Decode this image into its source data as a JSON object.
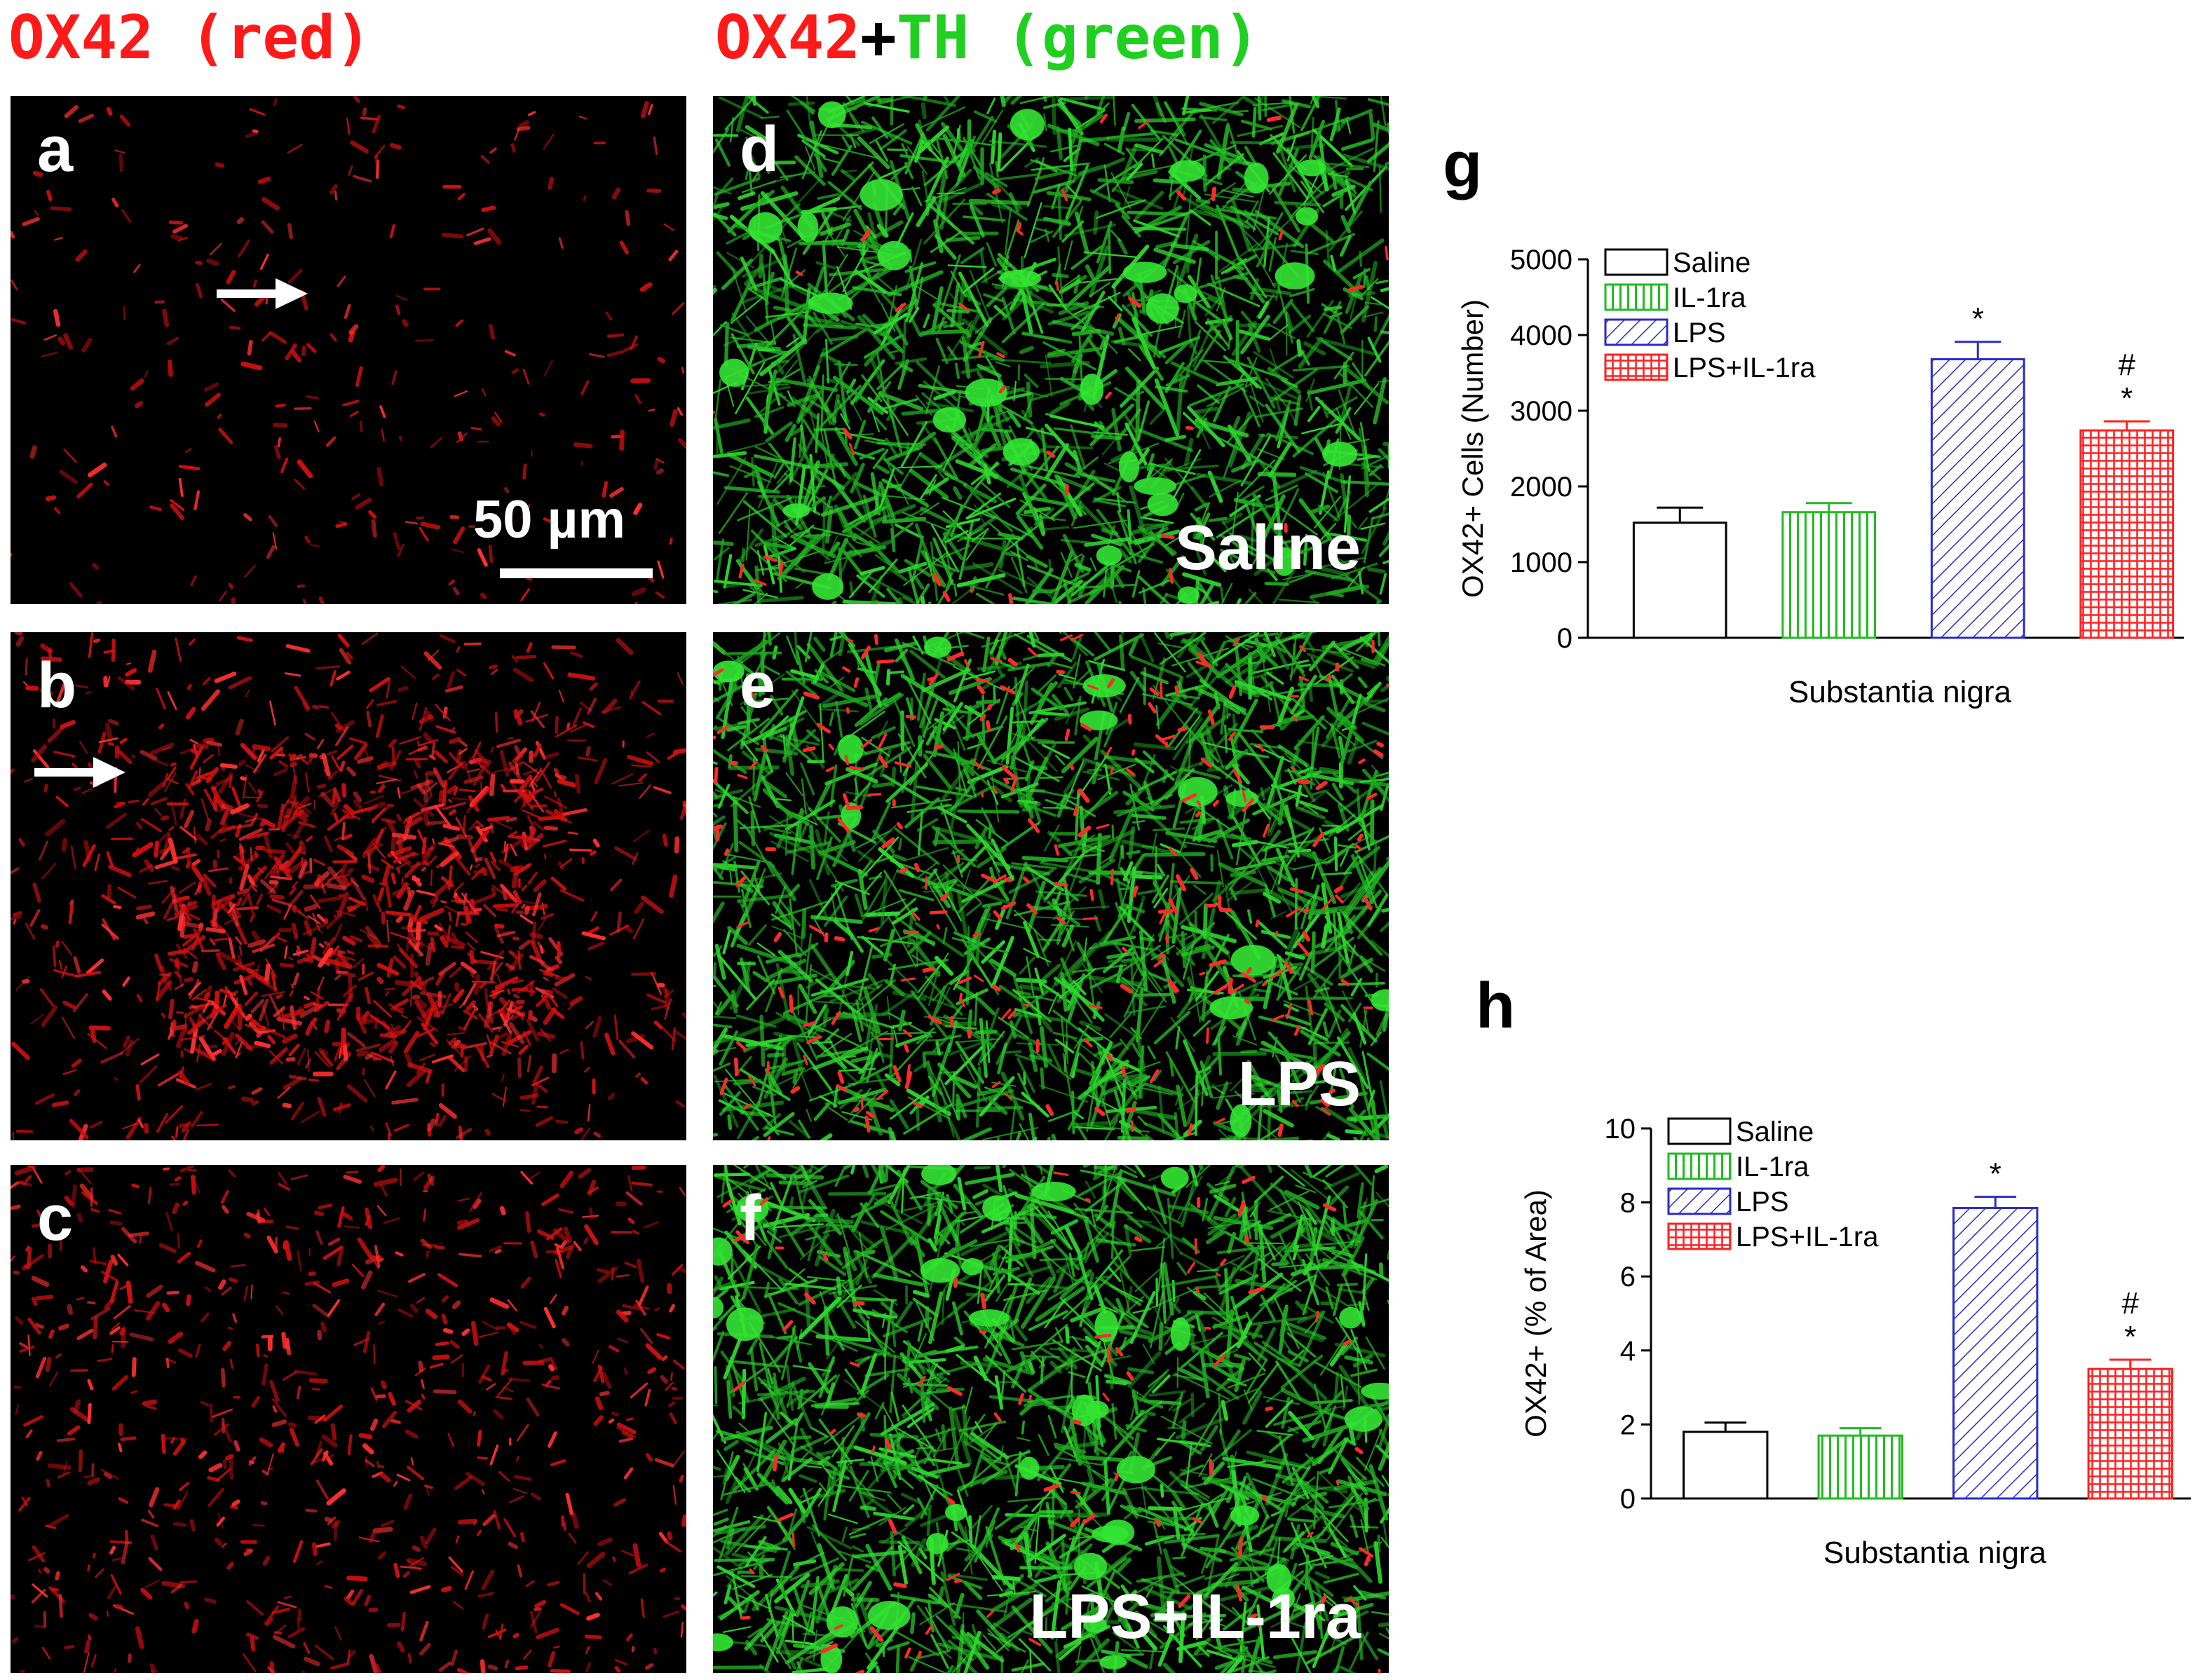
{
  "headers": {
    "left": {
      "text": "OX42 (red)",
      "color": "#ff1a1a"
    },
    "right": {
      "part1": "OX42",
      "part2": "+",
      "part3": "TH (green)",
      "color1": "#ff1a1a",
      "color2": "#000000",
      "color3": "#20d020"
    }
  },
  "panels": {
    "a": {
      "label": "a",
      "scale": "50 µm"
    },
    "b": {
      "label": "b"
    },
    "c": {
      "label": "c"
    },
    "d": {
      "label": "d",
      "group": "Saline"
    },
    "e": {
      "label": "e",
      "group": "LPS"
    },
    "f": {
      "label": "f",
      "group": "LPS+IL-1ra"
    }
  },
  "chart_data": [
    {
      "panel": "g",
      "type": "bar",
      "xlabel": "Substantia nigra",
      "ylabel": "OX42+ Cells (Number)",
      "ylim": [
        0,
        5000
      ],
      "yticks": [
        0,
        1000,
        2000,
        3000,
        4000,
        5000
      ],
      "series": [
        {
          "name": "Saline",
          "value": 1520,
          "error": 200,
          "color": "#000000",
          "pattern": "none",
          "marks": []
        },
        {
          "name": "IL-1ra",
          "value": 1660,
          "error": 120,
          "color": "#22bb22",
          "pattern": "vertical",
          "marks": []
        },
        {
          "name": "LPS",
          "value": 3680,
          "error": 230,
          "color": "#2b2bc8",
          "pattern": "diagonal",
          "marks": [
            "*"
          ]
        },
        {
          "name": "LPS+IL-1ra",
          "value": 2740,
          "error": 120,
          "color": "#ff2020",
          "pattern": "grid",
          "marks": [
            "#",
            "*"
          ]
        }
      ]
    },
    {
      "panel": "h",
      "type": "bar",
      "xlabel": "Substantia nigra",
      "ylabel": "OX42+ (% of Area)",
      "ylim": [
        0,
        10
      ],
      "yticks": [
        0,
        2,
        4,
        6,
        8,
        10
      ],
      "series": [
        {
          "name": "Saline",
          "value": 1.8,
          "error": 0.25,
          "color": "#000000",
          "pattern": "none",
          "marks": []
        },
        {
          "name": "IL-1ra",
          "value": 1.7,
          "error": 0.2,
          "color": "#22bb22",
          "pattern": "vertical",
          "marks": []
        },
        {
          "name": "LPS",
          "value": 7.85,
          "error": 0.3,
          "color": "#2b2bc8",
          "pattern": "diagonal",
          "marks": [
            "*"
          ]
        },
        {
          "name": "LPS+IL-1ra",
          "value": 3.5,
          "error": 0.25,
          "color": "#ff2020",
          "pattern": "grid",
          "marks": [
            "#",
            "*"
          ]
        }
      ]
    }
  ]
}
